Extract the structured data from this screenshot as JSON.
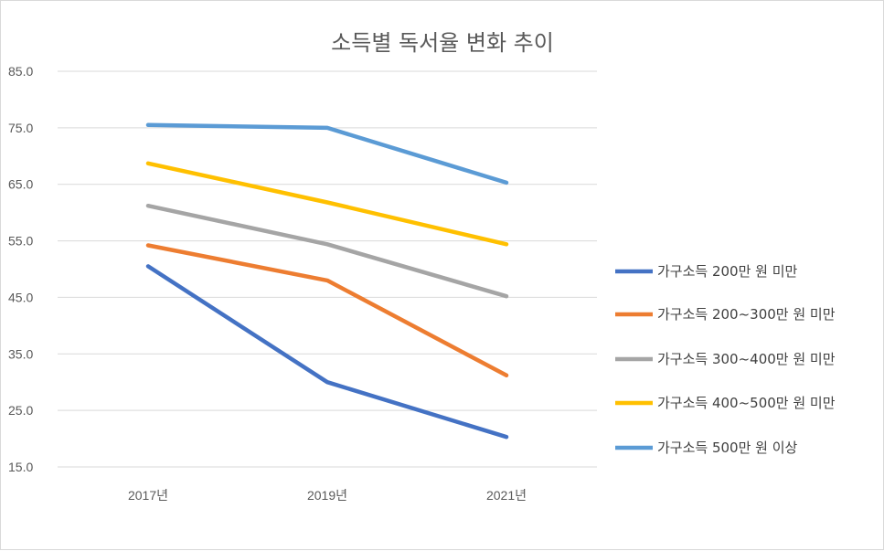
{
  "chart_data": {
    "type": "line",
    "title": "소득별 독서율 변화 추이",
    "categories": [
      "2017년",
      "2019년",
      "2021년"
    ],
    "y_ticks": [
      "15.0",
      "25.0",
      "35.0",
      "45.0",
      "55.0",
      "65.0",
      "75.0",
      "85.0"
    ],
    "ylim": [
      15,
      85
    ],
    "grid": true,
    "legend_position": "right",
    "series": [
      {
        "name": "가구소득 200만 원 미만",
        "color": "#4472C4",
        "values": [
          50.5,
          30.0,
          20.3
        ]
      },
      {
        "name": "가구소득 200~300만 원 미만",
        "color": "#ED7D31",
        "values": [
          54.2,
          48.0,
          31.2
        ]
      },
      {
        "name": "가구소득 300~400만 원 미만",
        "color": "#A5A5A5",
        "values": [
          61.2,
          54.4,
          45.2
        ]
      },
      {
        "name": "가구소득 400~500만 원 미만",
        "color": "#FFC000",
        "values": [
          68.7,
          61.8,
          54.4
        ]
      },
      {
        "name": "가구소득 500만 원 이상",
        "color": "#5B9BD5",
        "values": [
          75.5,
          75.0,
          65.3
        ]
      }
    ]
  }
}
